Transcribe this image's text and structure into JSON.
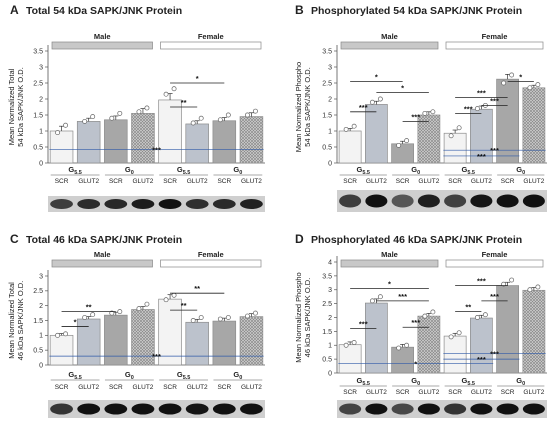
{
  "colors": {
    "scr_g55": "#f3f3f3",
    "glut2_g55": "#bcc2cc",
    "scr_g0": "#a7a7a7",
    "glut2_g0": "#c9c9c9",
    "male_bar": "#c8c8c8",
    "female_bar": "#ffffff",
    "sig_line": "#2f5aa8",
    "blot_band": "#111111"
  },
  "chart_data": [
    {
      "panel": "A",
      "type": "bar",
      "title": "Total 54 kDa SAPK/JNK Protein",
      "ylabel": "Mean Normalized Total 54 kDa SAPK/JNK O.D.",
      "ylim": [
        0,
        3.5
      ],
      "yticks": [
        "0",
        "0.5",
        "1",
        "1.5",
        "2",
        "2.5",
        "3",
        "3.5"
      ],
      "sex_labels": [
        "Male",
        "Female"
      ],
      "group_labels": [
        "G5.5",
        "G0",
        "G5.5",
        "G0"
      ],
      "categories": [
        "SCR",
        "GLUT2",
        "SCR",
        "GLUT2",
        "SCR",
        "GLUT2",
        "SCR",
        "GLUT2"
      ],
      "values": [
        1.0,
        1.3,
        1.35,
        1.55,
        1.97,
        1.22,
        1.32,
        1.45
      ],
      "errors": [
        0.15,
        0.1,
        0.12,
        0.15,
        0.2,
        0.1,
        0.1,
        0.12
      ],
      "points": [
        [
          0.95,
          1.18
        ],
        [
          1.3,
          1.45
        ],
        [
          1.4,
          1.55
        ],
        [
          1.6,
          1.72
        ],
        [
          2.15,
          2.32
        ],
        [
          1.25,
          1.4
        ],
        [
          1.35,
          1.5
        ],
        [
          1.5,
          1.62
        ]
      ],
      "annotations": [
        {
          "type": "bracket",
          "from": 4,
          "to": 5,
          "y": 1.75,
          "label": "**"
        },
        {
          "type": "bracket",
          "from": 4,
          "to": 6,
          "y": 2.5,
          "label": "*"
        },
        {
          "type": "line",
          "from": 0,
          "to": 7,
          "y": 0.42,
          "label": "***"
        }
      ]
    },
    {
      "panel": "B",
      "type": "bar",
      "title": "Phosphorylated  54 kDa SAPK/JNK Protein",
      "ylabel": "Mean Normalized Phospho 54 kDa SAPK/JNK O.D.",
      "ylim": [
        0,
        3.5
      ],
      "yticks": [
        "0",
        "0.5",
        "1",
        "1.5",
        "2",
        "2.5",
        "3",
        "3.5"
      ],
      "sex_labels": [
        "Male",
        "Female"
      ],
      "group_labels": [
        "G5.5",
        "G0",
        "G5.5",
        "G0"
      ],
      "categories": [
        "SCR",
        "GLUT2",
        "SCR",
        "GLUT2",
        "SCR",
        "GLUT2",
        "SCR",
        "GLUT2"
      ],
      "values": [
        1.0,
        1.83,
        0.6,
        1.5,
        0.93,
        1.68,
        2.62,
        2.35
      ],
      "errors": [
        0.08,
        0.1,
        0.08,
        0.1,
        0.1,
        0.1,
        0.15,
        0.08
      ],
      "points": [
        [
          1.05,
          1.15
        ],
        [
          1.9,
          2.0
        ],
        [
          0.55,
          0.7
        ],
        [
          1.55,
          1.6
        ],
        [
          0.85,
          1.1
        ],
        [
          1.7,
          1.8
        ],
        [
          2.5,
          2.75
        ],
        [
          2.35,
          2.45
        ]
      ],
      "annotations": [
        {
          "type": "bracket",
          "from": 0,
          "to": 1,
          "y": 1.6,
          "label": "***"
        },
        {
          "type": "bracket",
          "from": 0,
          "to": 2,
          "y": 2.55,
          "label": "*"
        },
        {
          "type": "bracket",
          "from": 1,
          "to": 3,
          "y": 2.2,
          "label": "*"
        },
        {
          "type": "bracket",
          "from": 2,
          "to": 3,
          "y": 1.3,
          "label": "***"
        },
        {
          "type": "bracket",
          "from": 4,
          "to": 5,
          "y": 1.55,
          "label": "***"
        },
        {
          "type": "bracket",
          "from": 4,
          "to": 6,
          "y": 2.05,
          "label": "***"
        },
        {
          "type": "bracket",
          "from": 5,
          "to": 6,
          "y": 1.8,
          "label": "***"
        },
        {
          "type": "bracket",
          "from": 6,
          "to": 7,
          "y": 2.55,
          "label": "*"
        },
        {
          "type": "line",
          "from": 4,
          "to": 7,
          "y": 0.4,
          "label": "***"
        },
        {
          "type": "line",
          "from": 4,
          "to": 6,
          "y": 0.22,
          "label": "***"
        }
      ]
    },
    {
      "panel": "C",
      "type": "bar",
      "title": "Total 46 kDa SAPK/JNK Protein",
      "ylabel": "Mean Normalized Total 46 kDa SAPK/JNK O.D.",
      "ylim": [
        0,
        3
      ],
      "yticks": [
        "0",
        "0.5",
        "1",
        "1.5",
        "2",
        "2.5",
        "3"
      ],
      "sex_labels": [
        "Male",
        "Female"
      ],
      "group_labels": [
        "G5.5",
        "G0",
        "G5.5",
        "G0"
      ],
      "categories": [
        "SCR",
        "GLUT2",
        "SCR",
        "GLUT2",
        "SCR",
        "GLUT2",
        "SCR",
        "GLUT2"
      ],
      "values": [
        1.0,
        1.55,
        1.68,
        1.87,
        2.22,
        1.44,
        1.48,
        1.63
      ],
      "errors": [
        0.06,
        0.08,
        0.1,
        0.1,
        0.15,
        0.1,
        0.1,
        0.1
      ],
      "points": [
        [
          1.0,
          1.05
        ],
        [
          1.6,
          1.7
        ],
        [
          1.75,
          1.8
        ],
        [
          1.9,
          2.05
        ],
        [
          2.2,
          2.35
        ],
        [
          1.5,
          1.6
        ],
        [
          1.55,
          1.6
        ],
        [
          1.65,
          1.75
        ]
      ],
      "annotations": [
        {
          "type": "bracket",
          "from": 0,
          "to": 1,
          "y": 1.3,
          "label": "*"
        },
        {
          "type": "bracket",
          "from": 0,
          "to": 2,
          "y": 1.8,
          "label": "**"
        },
        {
          "type": "bracket",
          "from": 4,
          "to": 5,
          "y": 1.85,
          "label": "**"
        },
        {
          "type": "bracket",
          "from": 4,
          "to": 6,
          "y": 2.42,
          "label": "**"
        },
        {
          "type": "line",
          "from": 0,
          "to": 7,
          "y": 0.3,
          "label": "***"
        }
      ]
    },
    {
      "panel": "D",
      "type": "bar",
      "title": "Phosphorylated  46 kDa SAPK/JNK Protein",
      "ylabel": "Mean Normalized Phospho 46 kDa SAPK/JNK O.D.",
      "ylim": [
        0,
        4
      ],
      "yticks": [
        "0",
        "0.5",
        "1",
        "1.5",
        "2",
        "2.5",
        "3",
        "3.5",
        "4"
      ],
      "sex_labels": [
        "Male",
        "Female"
      ],
      "group_labels": [
        "G5.5",
        "G0",
        "G5.5",
        "G0"
      ],
      "categories": [
        "SCR",
        "GLUT2",
        "SCR",
        "GLUT2",
        "SCR",
        "GLUT2",
        "SCR",
        "GLUT2"
      ],
      "values": [
        1.02,
        2.52,
        0.93,
        2.05,
        1.33,
        1.98,
        3.15,
        2.98
      ],
      "errors": [
        0.1,
        0.15,
        0.1,
        0.1,
        0.1,
        0.1,
        0.12,
        0.1
      ],
      "points": [
        [
          1.0,
          1.1
        ],
        [
          2.6,
          2.75
        ],
        [
          0.9,
          1.0
        ],
        [
          2.05,
          2.2
        ],
        [
          1.3,
          1.45
        ],
        [
          2.0,
          2.1
        ],
        [
          3.2,
          3.35
        ],
        [
          3.0,
          3.1
        ]
      ],
      "annotations": [
        {
          "type": "bracket",
          "from": 0,
          "to": 1,
          "y": 1.6,
          "label": "***"
        },
        {
          "type": "bracket",
          "from": 0,
          "to": 3,
          "y": 3.05,
          "label": "*"
        },
        {
          "type": "bracket",
          "from": 1,
          "to": 3,
          "y": 2.6,
          "label": "***"
        },
        {
          "type": "bracket",
          "from": 2,
          "to": 3,
          "y": 1.65,
          "label": "***"
        },
        {
          "type": "bracket",
          "from": 4,
          "to": 5,
          "y": 2.22,
          "label": "**"
        },
        {
          "type": "bracket",
          "from": 4,
          "to": 6,
          "y": 3.15,
          "label": "***"
        },
        {
          "type": "bracket",
          "from": 5,
          "to": 6,
          "y": 2.6,
          "label": "***"
        },
        {
          "type": "line",
          "from": 4,
          "to": 7,
          "y": 0.7,
          "label": "***"
        },
        {
          "type": "line",
          "from": 0,
          "to": 5,
          "y": 0.35,
          "label": "*"
        },
        {
          "type": "line",
          "from": 4,
          "to": 6,
          "y": 0.5,
          "label": "***"
        }
      ]
    }
  ]
}
